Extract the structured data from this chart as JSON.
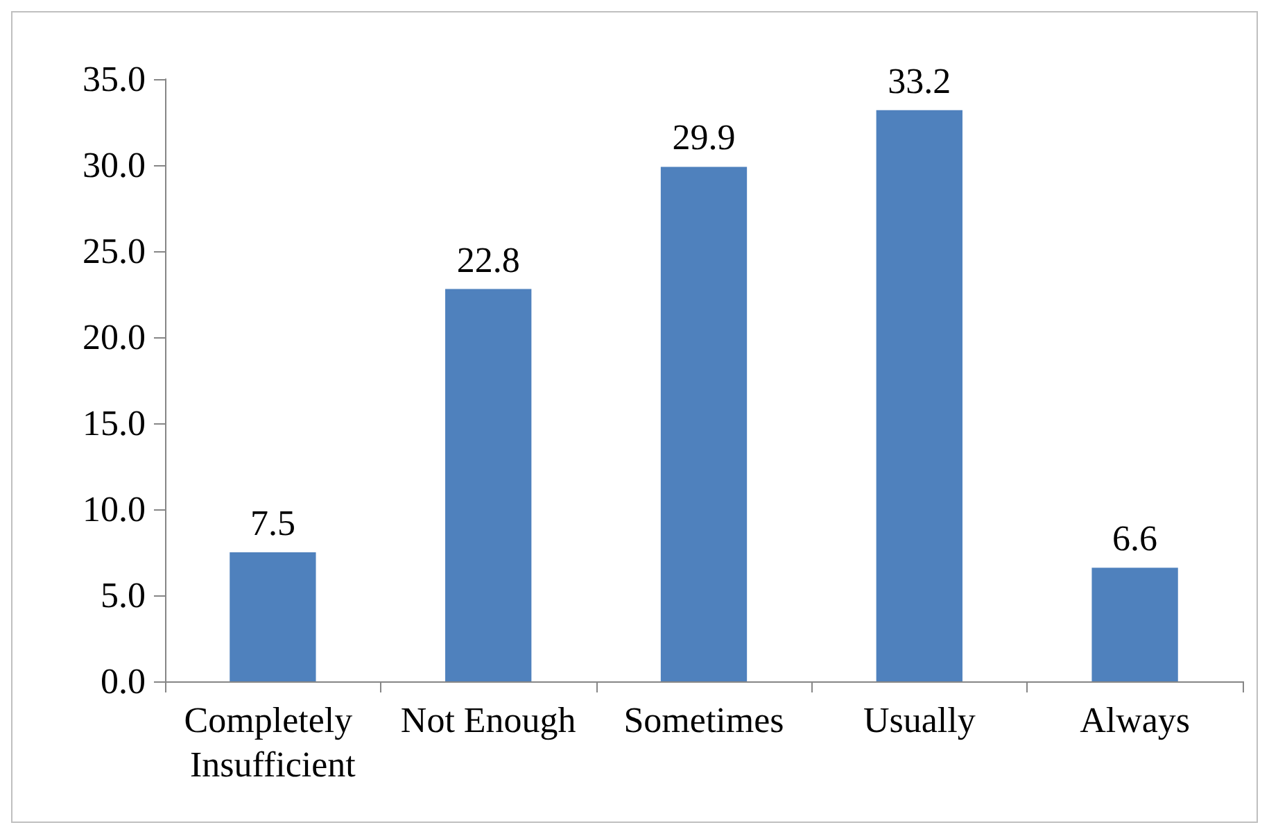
{
  "chart_data": {
    "type": "bar",
    "categories": [
      "Completely Insufficient",
      "Not Enough",
      "Sometimes",
      "Usually",
      "Always"
    ],
    "values": [
      7.5,
      22.8,
      29.9,
      33.2,
      6.6
    ],
    "color": "#4f81bd",
    "data_labels": true,
    "ylim": [
      0,
      35
    ],
    "yticks": [
      {
        "value": 0,
        "label": "0.0"
      },
      {
        "value": 5,
        "label": "5.0"
      },
      {
        "value": 10,
        "label": "10.0"
      },
      {
        "value": 15,
        "label": "15.0"
      },
      {
        "value": 20,
        "label": "20.0"
      },
      {
        "value": 25,
        "label": "25.0"
      },
      {
        "value": 30,
        "label": "30.0"
      },
      {
        "value": 35,
        "label": "35.0"
      }
    ]
  }
}
